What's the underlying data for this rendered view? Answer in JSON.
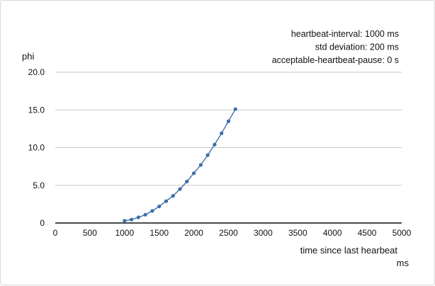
{
  "chart_data": {
    "type": "line",
    "annotations": [
      "heartbeat-interval: 1000 ms",
      "std deviation: 200 ms",
      "acceptable-heartbeat-pause: 0 s"
    ],
    "ylabel": "phi",
    "xlabel": "time since last hearbeat",
    "xunit": "ms",
    "xlim": [
      0,
      5000
    ],
    "ylim": [
      0,
      20
    ],
    "xticks": [
      0,
      500,
      1000,
      1500,
      2000,
      2500,
      3000,
      3500,
      4000,
      4500,
      5000
    ],
    "yticks": [
      0,
      5,
      10,
      15,
      20
    ],
    "ytick_labels": [
      "0",
      "5.0",
      "10.0",
      "15.0",
      "20.0"
    ],
    "grid": true,
    "line_color": "#3d6fa8",
    "series": [
      {
        "x": [
          1000,
          1100,
          1200,
          1300,
          1400,
          1500,
          1600,
          1700,
          1800,
          1900,
          2000,
          2100,
          2200,
          2300,
          2400,
          2500,
          2600
        ],
        "y": [
          0.3,
          0.45,
          0.75,
          1.1,
          1.6,
          2.2,
          2.9,
          3.6,
          4.5,
          5.5,
          6.6,
          7.7,
          9.0,
          10.4,
          11.9,
          13.5,
          15.1
        ]
      }
    ]
  }
}
